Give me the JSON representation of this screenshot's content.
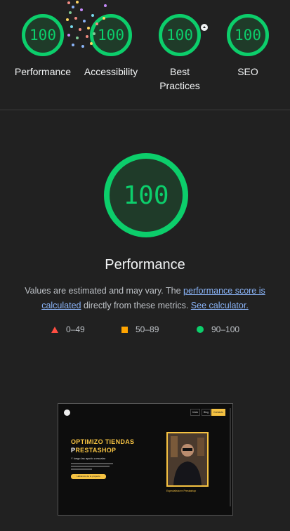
{
  "summary": {
    "gauges": [
      {
        "score": "100",
        "label": "Performance"
      },
      {
        "score": "100",
        "label": "Accessibility"
      },
      {
        "score": "100",
        "label": "Best Practices"
      },
      {
        "score": "100",
        "label": "SEO"
      }
    ]
  },
  "performance": {
    "score": "100",
    "title": "Performance",
    "desc_prefix": "Values are estimated and may vary. The ",
    "desc_link1": "performance score is calculated",
    "desc_middle": " directly from these metrics. ",
    "desc_link2": "See calculator."
  },
  "legend": {
    "fail": "0–49",
    "average": "50–89",
    "pass": "90–100"
  },
  "screenshot": {
    "nav_buttons": [
      "Inicio",
      "Blog",
      "Contacto"
    ],
    "hero_line1": "OPTIMIZO TIENDAS",
    "hero_line2_prefix": "P",
    "hero_line2_rest": "RESTASHOP",
    "subtitle": "Y luego las ayudo a escalar",
    "cta": "Hablemos de tu proyecto",
    "caption": "Especialista en Prestashop"
  },
  "colors": {
    "pass": "#0cce6b",
    "average": "#ffa400",
    "fail": "#ff4e42",
    "link": "#8ab4f8",
    "background": "#212121"
  }
}
